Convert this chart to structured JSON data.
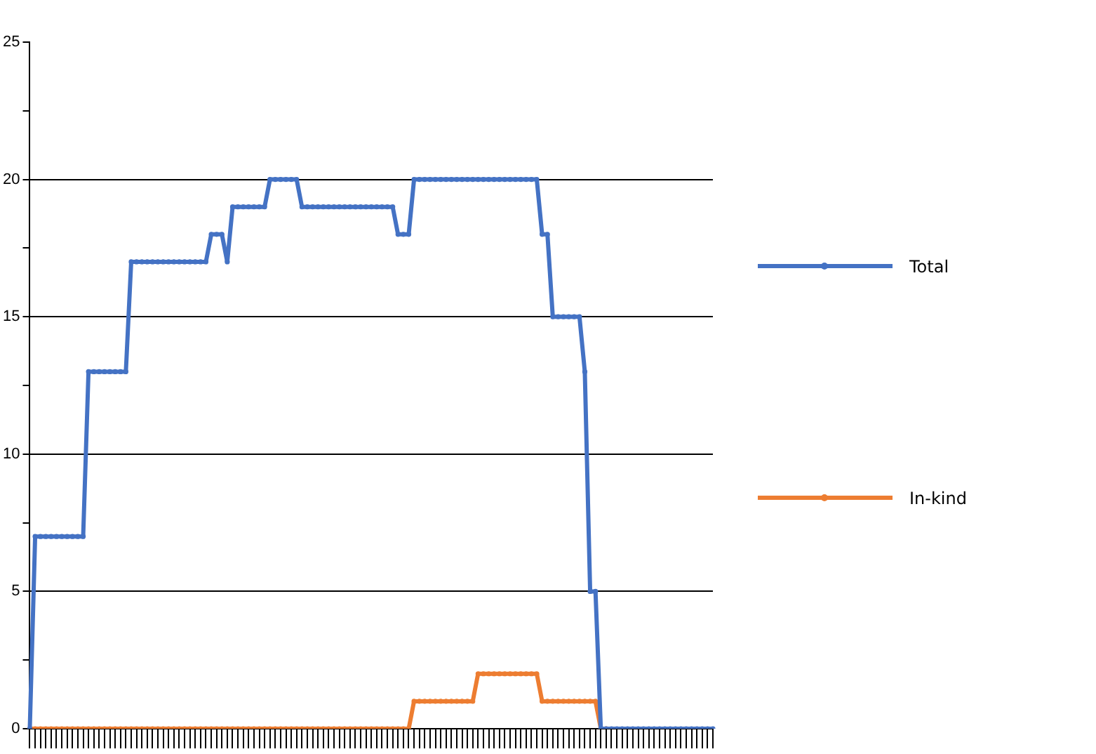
{
  "chart_data": {
    "type": "line",
    "categories": [
      null,
      null,
      null,
      null,
      null,
      null,
      null,
      null,
      null,
      null,
      null,
      null,
      null,
      null,
      null,
      null,
      null,
      null,
      null,
      null,
      null,
      null,
      null,
      null,
      null,
      null,
      null,
      null,
      null,
      null,
      null,
      null,
      null,
      null,
      null,
      null,
      null,
      null,
      null,
      null,
      null,
      null,
      null,
      null,
      null,
      null,
      null,
      null,
      null,
      null,
      null,
      null,
      null,
      null,
      null,
      null,
      null,
      null,
      null,
      null,
      null,
      null,
      null,
      null,
      null,
      null,
      null,
      null,
      null,
      null,
      null,
      null,
      null,
      null,
      null,
      null,
      null,
      null,
      null,
      null,
      null,
      null,
      null,
      null,
      null,
      null,
      null,
      null,
      null,
      null,
      null,
      null,
      null,
      null,
      null,
      null,
      null,
      null,
      null,
      null,
      null,
      null,
      null,
      null,
      null,
      null,
      null,
      null,
      null,
      null,
      null,
      null,
      null,
      null,
      null,
      null,
      null,
      null,
      null,
      null,
      null,
      null,
      null,
      null,
      null,
      null,
      null,
      null,
      null
    ],
    "series": [
      {
        "name": "Total",
        "color": "#4472c4",
        "values": [
          0,
          7,
          7,
          7,
          7,
          7,
          7,
          7,
          7,
          7,
          7,
          13,
          13,
          13,
          13,
          13,
          13,
          13,
          13,
          17,
          17,
          17,
          17,
          17,
          17,
          17,
          17,
          17,
          17,
          17,
          17,
          17,
          17,
          17,
          18,
          18,
          18,
          17,
          19,
          19,
          19,
          19,
          19,
          19,
          19,
          20,
          20,
          20,
          20,
          20,
          20,
          19,
          19,
          19,
          19,
          19,
          19,
          19,
          19,
          19,
          19,
          19,
          19,
          19,
          19,
          19,
          19,
          19,
          19,
          18,
          18,
          18,
          20,
          20,
          20,
          20,
          20,
          20,
          20,
          20,
          20,
          20,
          20,
          20,
          20,
          20,
          20,
          20,
          20,
          20,
          20,
          20,
          20,
          20,
          20,
          20,
          18,
          18,
          15,
          15,
          15,
          15,
          15,
          15,
          13,
          5,
          5,
          0,
          0,
          0,
          0,
          0,
          0,
          0,
          0,
          0,
          0,
          0,
          0,
          0,
          0,
          0,
          0,
          0,
          0,
          0,
          0,
          0,
          0
        ]
      },
      {
        "name": "In-kind",
        "color": "#ed7d31",
        "values": [
          0,
          0,
          0,
          0,
          0,
          0,
          0,
          0,
          0,
          0,
          0,
          0,
          0,
          0,
          0,
          0,
          0,
          0,
          0,
          0,
          0,
          0,
          0,
          0,
          0,
          0,
          0,
          0,
          0,
          0,
          0,
          0,
          0,
          0,
          0,
          0,
          0,
          0,
          0,
          0,
          0,
          0,
          0,
          0,
          0,
          0,
          0,
          0,
          0,
          0,
          0,
          0,
          0,
          0,
          0,
          0,
          0,
          0,
          0,
          0,
          0,
          0,
          0,
          0,
          0,
          0,
          0,
          0,
          0,
          0,
          0,
          0,
          1,
          1,
          1,
          1,
          1,
          1,
          1,
          1,
          1,
          1,
          1,
          1,
          2,
          2,
          2,
          2,
          2,
          2,
          2,
          2,
          2,
          2,
          2,
          2,
          1,
          1,
          1,
          1,
          1,
          1,
          1,
          1,
          1,
          1,
          1,
          0,
          0,
          null,
          null,
          null,
          null,
          null,
          null,
          null,
          null,
          null,
          null,
          null,
          null,
          null,
          null,
          null,
          null,
          null,
          null,
          null,
          null
        ]
      }
    ],
    "ylim": [
      0,
      25
    ],
    "yticks": [
      0,
      {
        "value": 2.5,
        "label": null
      },
      5,
      {
        "value": 7.5,
        "label": null
      },
      10,
      {
        "value": 12.5,
        "label": null
      },
      15,
      {
        "value": 17.5,
        "label": null
      },
      20,
      {
        "value": 22.5,
        "label": null
      },
      25
    ],
    "grid": "y",
    "legend": "right",
    "tick_labels": "y",
    "marker": "circle",
    "line_style": "solid"
  }
}
